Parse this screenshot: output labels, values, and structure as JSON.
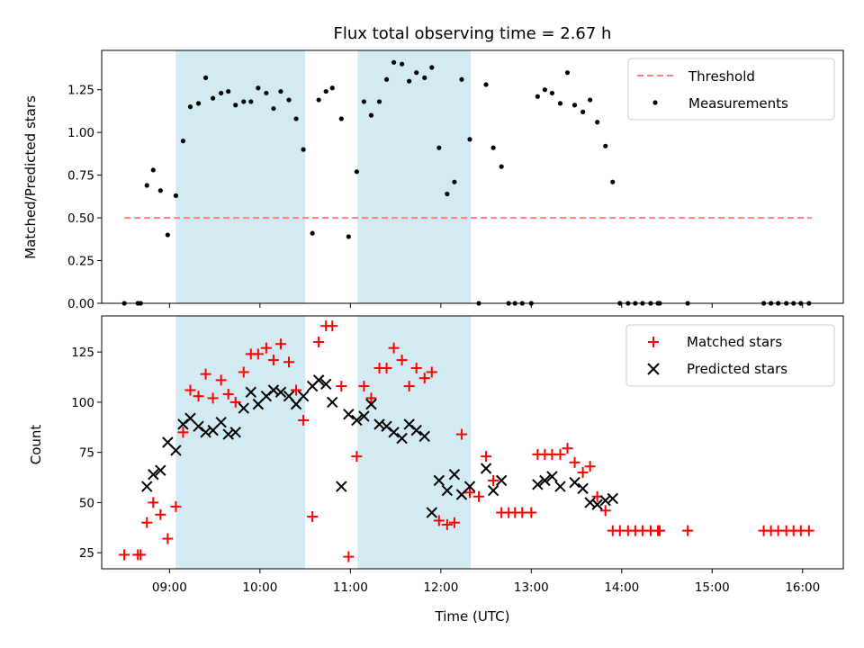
{
  "chart_data": [
    {
      "type": "scatter",
      "title": "Flux total observing time = 2.67 h",
      "xlabel": "",
      "ylabel": "Matched/Predicted stars",
      "xlim": [
        8.25,
        16.45
      ],
      "ylim": [
        0.0,
        1.48
      ],
      "yticks": [
        0.0,
        0.25,
        0.5,
        0.75,
        1.0,
        1.25
      ],
      "ytick_labels": [
        "0.00",
        "0.25",
        "0.50",
        "0.75",
        "1.00",
        "1.25"
      ],
      "x_tick_values": [
        9,
        10,
        11,
        12,
        13,
        14,
        15,
        16
      ],
      "shaded_intervals": [
        [
          9.07,
          10.5
        ],
        [
          11.08,
          12.33
        ]
      ],
      "shade_color": "#add8e6",
      "legend_position": "upper right",
      "threshold": {
        "name": "Threshold",
        "value": 0.5,
        "x_range": [
          8.5,
          16.1
        ],
        "color": "#ff7f7f",
        "style": "dashed"
      },
      "series": [
        {
          "name": "Measurements",
          "color": "#000000",
          "marker": "dot",
          "x": [
            8.5,
            8.65,
            8.68,
            8.75,
            8.82,
            8.9,
            8.98,
            9.07,
            9.15,
            9.23,
            9.32,
            9.4,
            9.48,
            9.57,
            9.65,
            9.73,
            9.82,
            9.9,
            9.98,
            10.07,
            10.15,
            10.23,
            10.32,
            10.4,
            10.48,
            10.58,
            10.65,
            10.73,
            10.8,
            10.9,
            10.98,
            11.07,
            11.15,
            11.23,
            11.32,
            11.4,
            11.48,
            11.57,
            11.65,
            11.73,
            11.82,
            11.9,
            11.98,
            12.07,
            12.15,
            12.23,
            12.32,
            12.42,
            12.5,
            12.58,
            12.67,
            12.75,
            12.82,
            12.9,
            13.0,
            13.07,
            13.15,
            13.23,
            13.32,
            13.4,
            13.48,
            13.57,
            13.65,
            13.73,
            13.82,
            13.9,
            13.98,
            14.07,
            14.15,
            14.23,
            14.32,
            14.4,
            14.42,
            14.73,
            15.57,
            15.65,
            15.73,
            15.82,
            15.9,
            15.98,
            16.07
          ],
          "y": [
            0.0,
            0.0,
            0.0,
            0.69,
            0.78,
            0.66,
            0.4,
            0.63,
            0.95,
            1.15,
            1.17,
            1.32,
            1.2,
            1.23,
            1.24,
            1.16,
            1.18,
            1.18,
            1.26,
            1.23,
            1.14,
            1.24,
            1.19,
            1.08,
            0.9,
            0.41,
            1.19,
            1.24,
            1.26,
            1.08,
            0.39,
            0.77,
            1.18,
            1.1,
            1.18,
            1.31,
            1.41,
            1.4,
            1.3,
            1.35,
            1.32,
            1.38,
            0.91,
            0.64,
            0.71,
            1.31,
            0.96,
            0.0,
            1.28,
            0.91,
            0.8,
            0.0,
            0.0,
            0.0,
            0.0,
            1.21,
            1.25,
            1.23,
            1.17,
            1.35,
            1.16,
            1.12,
            1.19,
            1.06,
            0.92,
            0.71,
            0.0,
            0.0,
            0.0,
            0.0,
            0.0,
            0.0,
            0.0,
            0.0,
            0.0,
            0.0,
            0.0,
            0.0,
            0.0,
            0.0,
            0.0
          ]
        }
      ]
    },
    {
      "type": "scatter",
      "title": "",
      "xlabel": "Time (UTC)",
      "ylabel": "Count",
      "xlim": [
        8.25,
        16.45
      ],
      "ylim": [
        17,
        143
      ],
      "yticks": [
        25,
        50,
        75,
        100,
        125
      ],
      "ytick_labels": [
        "25",
        "50",
        "75",
        "100",
        "125"
      ],
      "x_tick_values": [
        9,
        10,
        11,
        12,
        13,
        14,
        15,
        16
      ],
      "xtick_labels": [
        "09:00",
        "10:00",
        "11:00",
        "12:00",
        "13:00",
        "14:00",
        "15:00",
        "16:00"
      ],
      "shaded_intervals": [
        [
          9.07,
          10.5
        ],
        [
          11.08,
          12.33
        ]
      ],
      "shade_color": "#add8e6",
      "legend_position": "upper right",
      "series": [
        {
          "name": "Matched stars",
          "color": "#ff0000",
          "marker": "plus",
          "x": [
            8.5,
            8.65,
            8.68,
            8.75,
            8.82,
            8.9,
            8.98,
            9.07,
            9.15,
            9.23,
            9.32,
            9.4,
            9.48,
            9.57,
            9.65,
            9.73,
            9.82,
            9.9,
            9.98,
            10.07,
            10.15,
            10.23,
            10.32,
            10.4,
            10.48,
            10.58,
            10.65,
            10.73,
            10.8,
            10.9,
            10.98,
            11.07,
            11.15,
            11.23,
            11.32,
            11.4,
            11.48,
            11.57,
            11.65,
            11.73,
            11.82,
            11.9,
            11.98,
            12.07,
            12.15,
            12.23,
            12.32,
            12.42,
            12.5,
            12.58,
            12.67,
            12.75,
            12.82,
            12.9,
            13.0,
            13.07,
            13.15,
            13.23,
            13.32,
            13.4,
            13.48,
            13.57,
            13.65,
            13.73,
            13.82,
            13.9,
            13.98,
            14.07,
            14.15,
            14.23,
            14.32,
            14.4,
            14.42,
            14.73,
            15.57,
            15.65,
            15.73,
            15.82,
            15.9,
            15.98,
            16.07
          ],
          "y": [
            24,
            24,
            24,
            40,
            50,
            44,
            32,
            48,
            85,
            106,
            103,
            114,
            102,
            111,
            104,
            100,
            115,
            124,
            124,
            127,
            121,
            129,
            120,
            106,
            91,
            43,
            130,
            138,
            138,
            108,
            23,
            73,
            108,
            102,
            117,
            117,
            127,
            121,
            108,
            117,
            112,
            115,
            41,
            39,
            40,
            84,
            55,
            53,
            73,
            61,
            45,
            45,
            45,
            45,
            45,
            74,
            74,
            74,
            74,
            77,
            70,
            65,
            68,
            53,
            46,
            36,
            36,
            36,
            36,
            36,
            36,
            36,
            36,
            36,
            36,
            36,
            36,
            36,
            36,
            36,
            36
          ]
        },
        {
          "name": "Predicted stars",
          "color": "#000000",
          "marker": "x",
          "x": [
            8.75,
            8.82,
            8.9,
            8.98,
            9.07,
            9.15,
            9.23,
            9.32,
            9.4,
            9.48,
            9.57,
            9.65,
            9.73,
            9.82,
            9.9,
            9.98,
            10.07,
            10.15,
            10.23,
            10.32,
            10.4,
            10.48,
            10.58,
            10.65,
            10.73,
            10.8,
            10.9,
            10.98,
            11.07,
            11.15,
            11.23,
            11.32,
            11.4,
            11.48,
            11.57,
            11.65,
            11.73,
            11.82,
            11.9,
            11.98,
            12.07,
            12.15,
            12.23,
            12.32,
            12.5,
            12.58,
            12.67,
            13.07,
            13.15,
            13.23,
            13.32,
            13.48,
            13.57,
            13.65,
            13.73,
            13.82,
            13.9
          ],
          "y": [
            58,
            64,
            66,
            80,
            76,
            89,
            92,
            88,
            85,
            86,
            90,
            84,
            85,
            97,
            105,
            99,
            103,
            106,
            105,
            103,
            99,
            103,
            108,
            111,
            109,
            100,
            58,
            94,
            91,
            93,
            99,
            89,
            88,
            85,
            82,
            89,
            86,
            83,
            45,
            61,
            56,
            64,
            54,
            58,
            67,
            56,
            61,
            59,
            61,
            63,
            58,
            60,
            57,
            50,
            49,
            51,
            52
          ]
        }
      ]
    }
  ]
}
